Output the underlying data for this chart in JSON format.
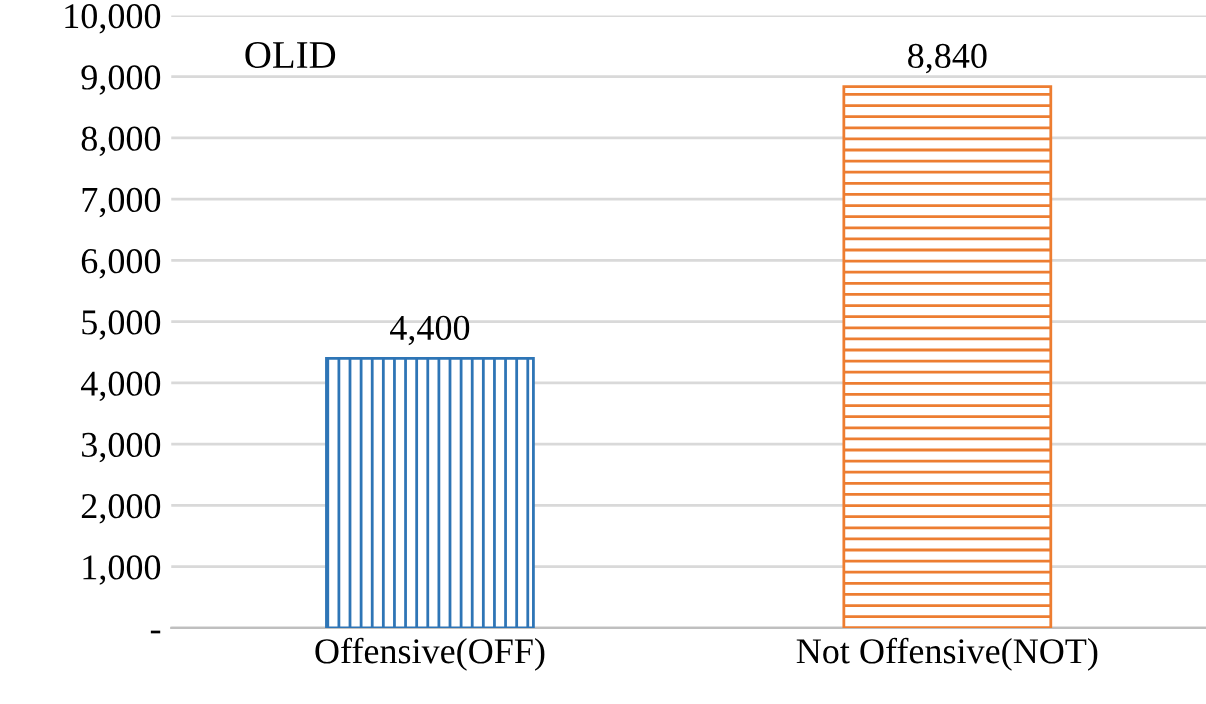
{
  "chart_data": {
    "type": "bar",
    "title": "OLID",
    "categories": [
      "Offensive(OFF)",
      "Not Offensive(NOT)"
    ],
    "values": [
      4400,
      8840
    ],
    "colors": [
      "#2e75b6",
      "#ed7d31"
    ],
    "value_labels": [
      "4,400",
      "8,840"
    ],
    "ylim": [
      0,
      10000
    ],
    "yticks": [
      {
        "value": 0,
        "label": "-"
      },
      {
        "value": 1000,
        "label": "1,000"
      },
      {
        "value": 2000,
        "label": "2,000"
      },
      {
        "value": 3000,
        "label": "3,000"
      },
      {
        "value": 4000,
        "label": "4,000"
      },
      {
        "value": 5000,
        "label": "5,000"
      },
      {
        "value": 6000,
        "label": "6,000"
      },
      {
        "value": 7000,
        "label": "7,000"
      },
      {
        "value": 8000,
        "label": "8,000"
      },
      {
        "value": 9000,
        "label": "9,000"
      },
      {
        "value": 10000,
        "label": "10,000"
      }
    ],
    "grid": "y",
    "legend": false
  }
}
